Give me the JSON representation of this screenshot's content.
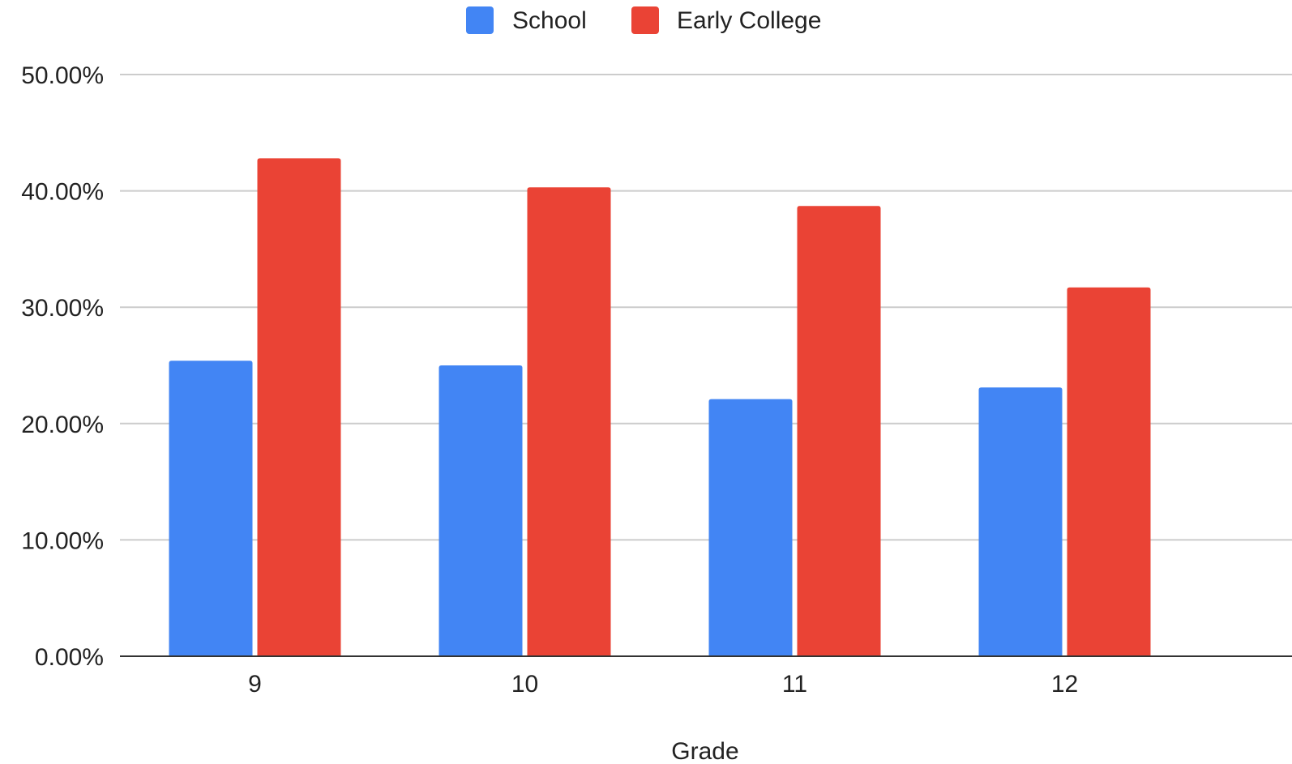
{
  "chart_data": {
    "type": "bar",
    "title": "",
    "xlabel": "Grade",
    "ylabel": "",
    "categories": [
      "9",
      "10",
      "11",
      "12"
    ],
    "series": [
      {
        "name": "School",
        "color": "#4285f4",
        "values": [
          25.4,
          25.0,
          22.1,
          23.1
        ]
      },
      {
        "name": "Early College",
        "color": "#ea4335",
        "values": [
          42.8,
          40.3,
          38.7,
          31.7
        ]
      }
    ],
    "ylim": [
      0,
      50
    ],
    "yticks": [
      0,
      10,
      20,
      30,
      40,
      50
    ],
    "ytick_labels": [
      "0.00%",
      "10.00%",
      "20.00%",
      "30.00%",
      "40.00%",
      "50.00%"
    ],
    "value_unit": "percent",
    "grid": true,
    "legend_position": "top-center"
  }
}
